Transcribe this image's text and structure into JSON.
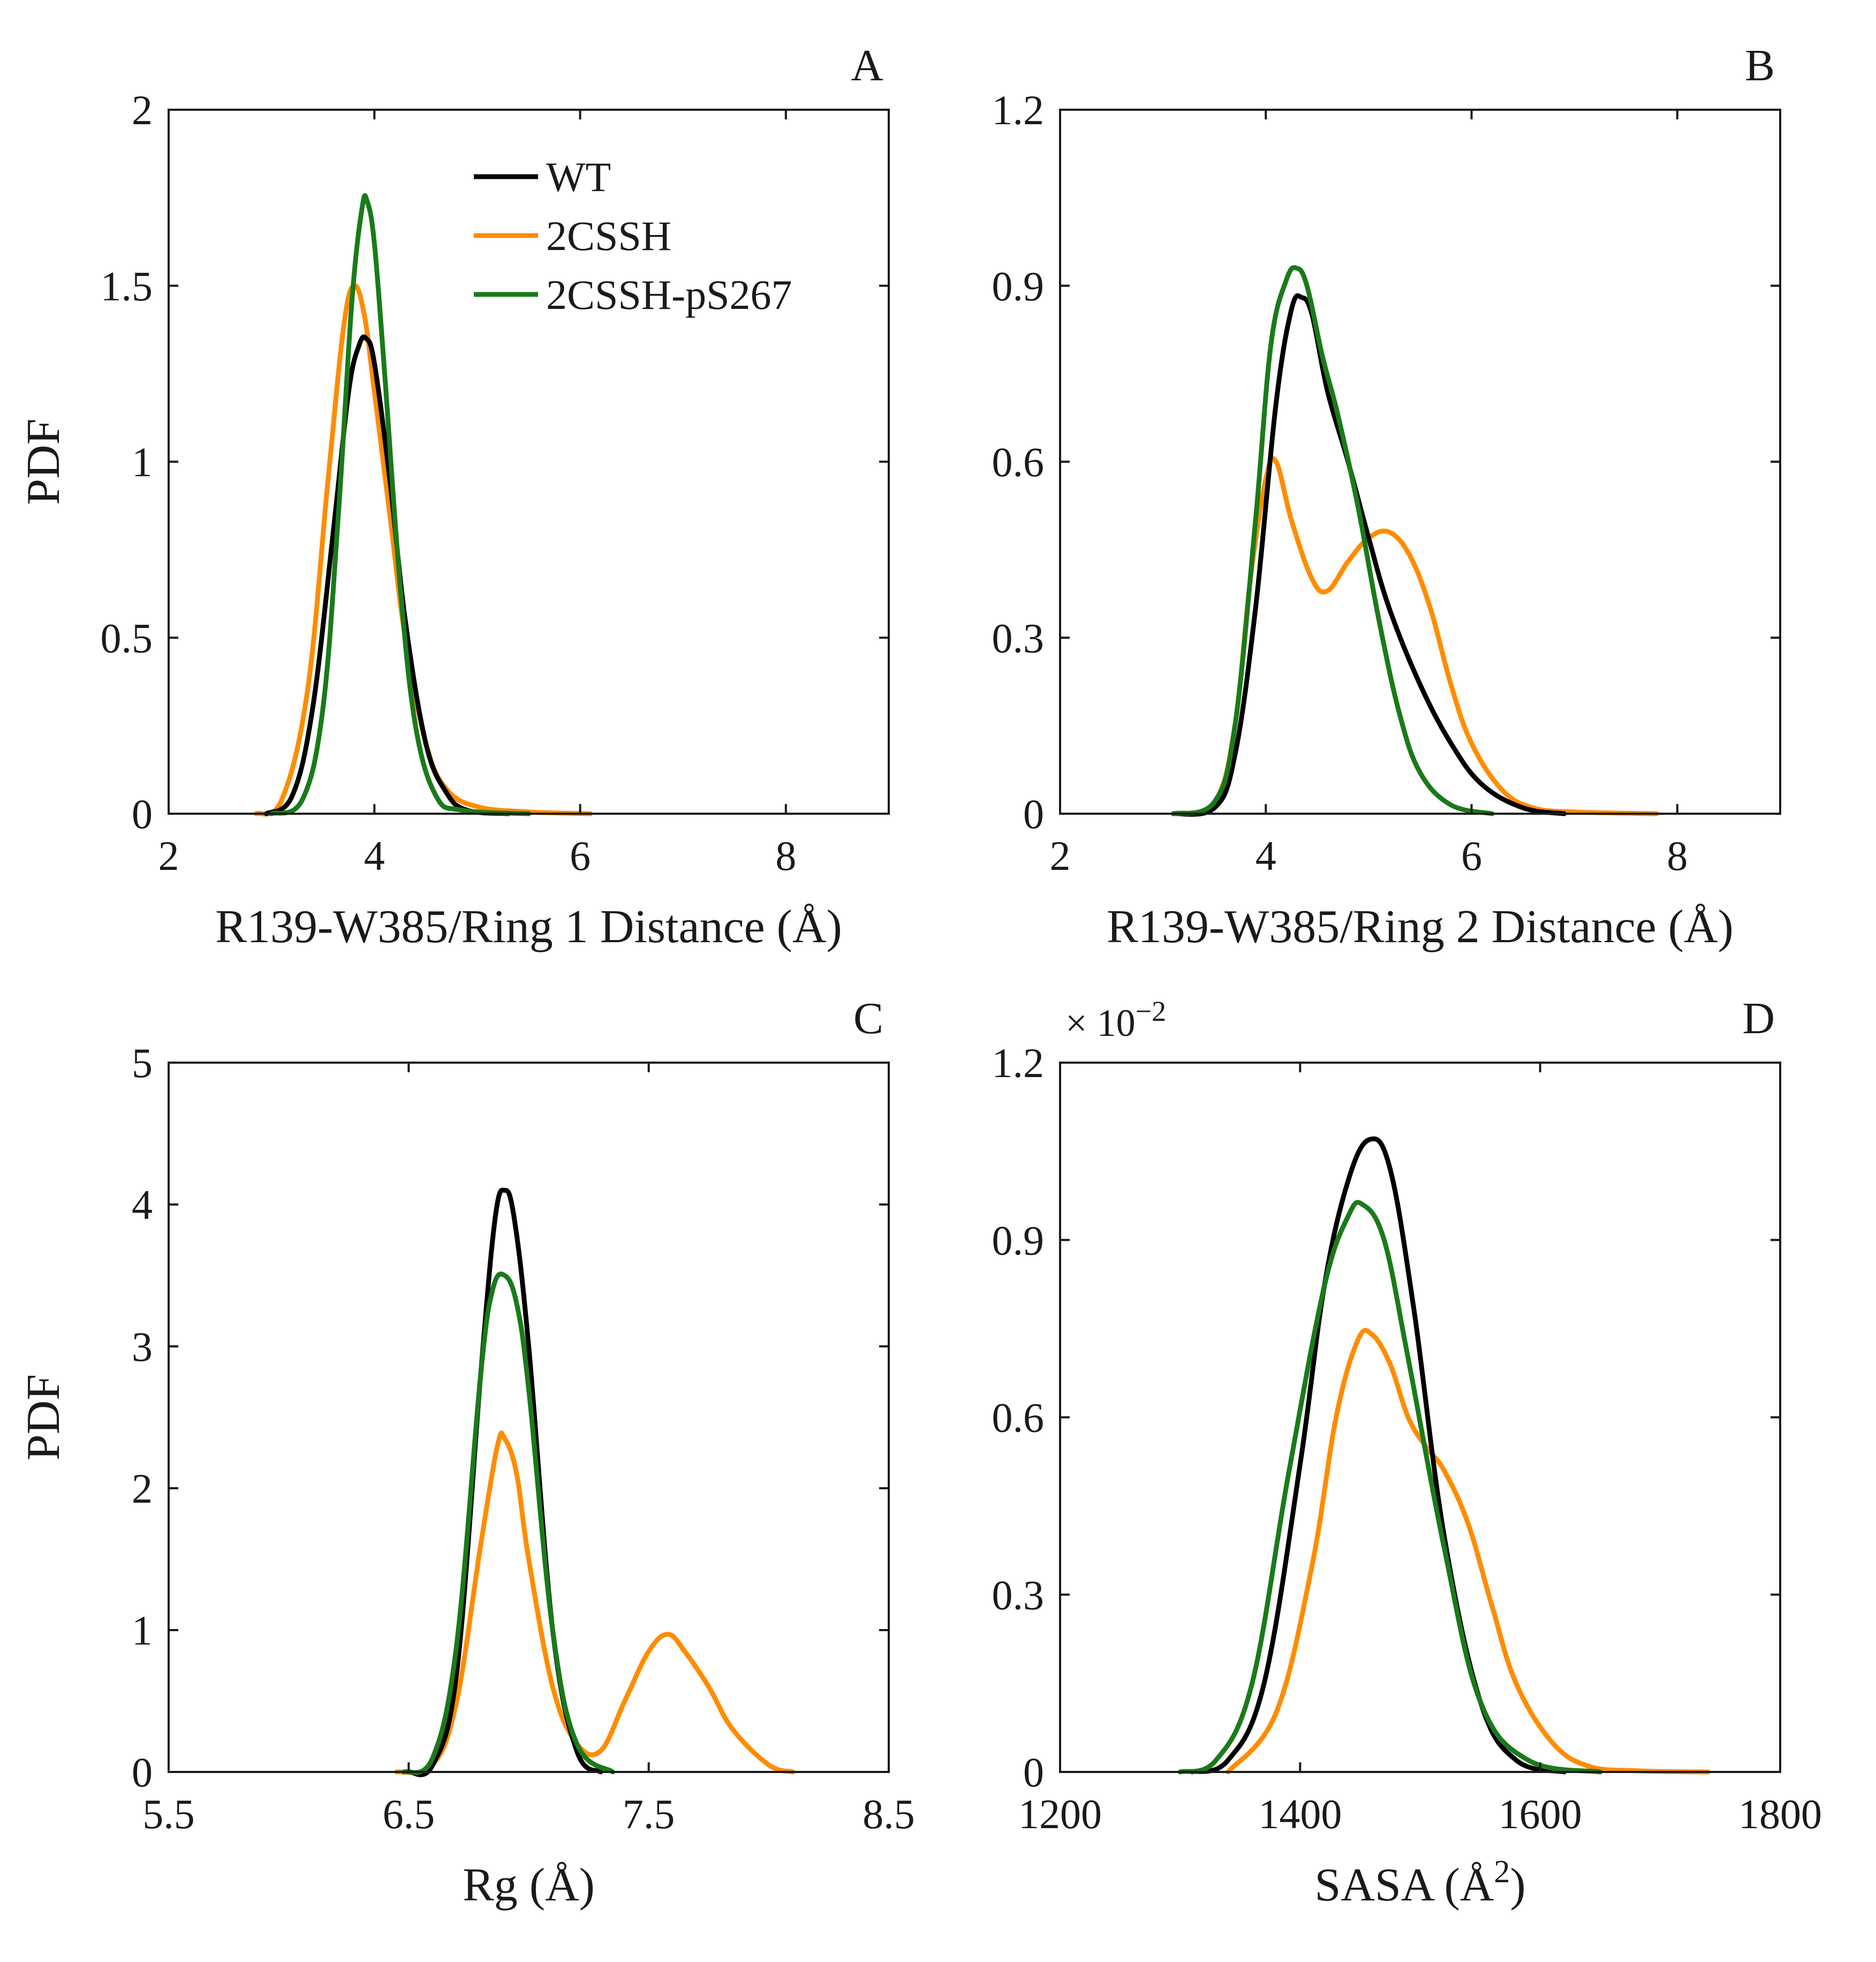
{
  "colors": {
    "WT": "#000000",
    "2CSSH": "#ff8c00",
    "2CSSH-pS267": "#1a7a1a"
  },
  "chart_data": [
    {
      "panel": "A",
      "type": "line",
      "ylabel": "PDF",
      "xlabel": "R139-W385/Ring 1 Distance (Å)",
      "xlim": [
        2,
        9
      ],
      "ylim": [
        0,
        2
      ],
      "xticks": [
        2,
        4,
        6,
        8
      ],
      "yticks": [
        0,
        0.5,
        1,
        1.5,
        2
      ],
      "ytick_labels": [
        "0",
        "0.5",
        "1",
        "1.5",
        "2"
      ],
      "legend": {
        "position": "top-center",
        "entries": [
          "WT",
          "2CSSH",
          "2CSSH-pS267"
        ]
      },
      "series": [
        {
          "name": "WT",
          "x": [
            2.95,
            3.2,
            3.4,
            3.6,
            3.75,
            3.85,
            3.92,
            4.0,
            4.15,
            4.3,
            4.5,
            4.7,
            4.9,
            5.3
          ],
          "y": [
            0,
            0.05,
            0.3,
            0.8,
            1.2,
            1.33,
            1.35,
            1.28,
            0.95,
            0.55,
            0.2,
            0.06,
            0.01,
            0
          ]
        },
        {
          "name": "2CSSH",
          "x": [
            2.85,
            3.1,
            3.35,
            3.55,
            3.7,
            3.8,
            3.9,
            4.0,
            4.15,
            4.3,
            4.5,
            4.7,
            5.0,
            5.5,
            6.1
          ],
          "y": [
            0,
            0.04,
            0.35,
            0.95,
            1.38,
            1.5,
            1.42,
            1.2,
            0.85,
            0.5,
            0.2,
            0.07,
            0.02,
            0.005,
            0
          ]
        },
        {
          "name": "2CSSH-pS267",
          "x": [
            3.0,
            3.3,
            3.5,
            3.65,
            3.78,
            3.88,
            3.93,
            4.0,
            4.1,
            4.25,
            4.4,
            4.6,
            4.85,
            5.5
          ],
          "y": [
            0,
            0.04,
            0.3,
            0.85,
            1.45,
            1.72,
            1.74,
            1.62,
            1.25,
            0.65,
            0.25,
            0.05,
            0.01,
            0
          ]
        }
      ]
    },
    {
      "panel": "B",
      "type": "line",
      "xlabel": "R139-W385/Ring 2 Distance (Å)",
      "xlim": [
        2,
        9
      ],
      "ylim": [
        0,
        1.2
      ],
      "xticks": [
        2,
        4,
        6,
        8
      ],
      "yticks": [
        0,
        0.3,
        0.6,
        0.9,
        1.2
      ],
      "ytick_labels": [
        "0",
        "0.3",
        "0.6",
        "0.9",
        "1.2"
      ],
      "series": [
        {
          "name": "WT",
          "x": [
            3.1,
            3.5,
            3.7,
            3.9,
            4.1,
            4.25,
            4.35,
            4.45,
            4.6,
            4.8,
            5.0,
            5.2,
            5.5,
            5.8,
            6.1,
            6.5,
            6.9
          ],
          "y": [
            0,
            0.01,
            0.1,
            0.35,
            0.7,
            0.86,
            0.88,
            0.85,
            0.72,
            0.6,
            0.47,
            0.35,
            0.22,
            0.12,
            0.05,
            0.01,
            0
          ]
        },
        {
          "name": "2CSSH",
          "x": [
            3.1,
            3.5,
            3.7,
            3.85,
            4.0,
            4.1,
            4.25,
            4.45,
            4.6,
            4.8,
            5.0,
            5.2,
            5.4,
            5.6,
            5.8,
            6.0,
            6.3,
            6.6,
            7.0,
            7.8
          ],
          "y": [
            0,
            0.02,
            0.15,
            0.4,
            0.57,
            0.6,
            0.5,
            0.4,
            0.38,
            0.43,
            0.47,
            0.48,
            0.44,
            0.35,
            0.22,
            0.12,
            0.04,
            0.01,
            0.003,
            0
          ]
        },
        {
          "name": "2CSSH-pS267",
          "x": [
            3.1,
            3.5,
            3.7,
            3.9,
            4.05,
            4.2,
            4.3,
            4.4,
            4.55,
            4.7,
            4.9,
            5.1,
            5.3,
            5.5,
            5.8,
            6.2
          ],
          "y": [
            0,
            0.02,
            0.15,
            0.5,
            0.8,
            0.91,
            0.93,
            0.9,
            0.78,
            0.68,
            0.52,
            0.33,
            0.17,
            0.07,
            0.015,
            0
          ]
        }
      ]
    },
    {
      "panel": "C",
      "type": "line",
      "ylabel": "PDF",
      "xlabel": "Rg (Å)",
      "xlim": [
        5.5,
        8.5
      ],
      "ylim": [
        0,
        5
      ],
      "xticks": [
        5.5,
        6.5,
        7.5,
        8.5
      ],
      "yticks": [
        0,
        1,
        2,
        3,
        4,
        5
      ],
      "ytick_labels": [
        "0",
        "1",
        "2",
        "3",
        "4",
        "5"
      ],
      "series": [
        {
          "name": "WT",
          "x": [
            6.5,
            6.6,
            6.7,
            6.8,
            6.86,
            6.9,
            6.94,
            7.0,
            7.1,
            7.2,
            7.3
          ],
          "y": [
            0,
            0.05,
            0.7,
            2.8,
            3.9,
            4.1,
            3.9,
            3.0,
            1.0,
            0.15,
            0
          ]
        },
        {
          "name": "2CSSH",
          "x": [
            6.45,
            6.6,
            6.7,
            6.8,
            6.87,
            6.9,
            6.95,
            7.0,
            7.1,
            7.2,
            7.3,
            7.4,
            7.5,
            7.58,
            7.65,
            7.75,
            7.85,
            8.0,
            8.1
          ],
          "y": [
            0,
            0.05,
            0.5,
            1.6,
            2.3,
            2.35,
            2.1,
            1.5,
            0.6,
            0.2,
            0.15,
            0.5,
            0.85,
            0.97,
            0.85,
            0.6,
            0.3,
            0.05,
            0
          ]
        },
        {
          "name": "2CSSH-pS267",
          "x": [
            6.48,
            6.6,
            6.7,
            6.8,
            6.85,
            6.9,
            6.95,
            7.0,
            7.1,
            7.2,
            7.35
          ],
          "y": [
            0,
            0.1,
            0.9,
            2.8,
            3.4,
            3.5,
            3.3,
            2.7,
            1.0,
            0.2,
            0
          ]
        }
      ]
    },
    {
      "panel": "D",
      "type": "line",
      "xlabel": "SASA (Å",
      "xlabel_sup": "2",
      "xlabel_end": ")",
      "xlim": [
        1200,
        1800
      ],
      "ylim": [
        0,
        1.2
      ],
      "xticks": [
        1200,
        1400,
        1600,
        1800
      ],
      "yticks": [
        0,
        0.3,
        0.6,
        0.9,
        1.2
      ],
      "ytick_labels": [
        "0",
        "0.3",
        "0.6",
        "0.9",
        "1.2"
      ],
      "y_multiplier": "× 10",
      "y_exponent": "−2",
      "series": [
        {
          "name": "WT",
          "x": [
            1310,
            1340,
            1370,
            1400,
            1420,
            1440,
            1458,
            1475,
            1495,
            1520,
            1550,
            1580,
            1620
          ],
          "y": [
            0,
            0.02,
            0.15,
            0.52,
            0.82,
            1.0,
            1.07,
            1.02,
            0.78,
            0.4,
            0.12,
            0.02,
            0
          ]
        },
        {
          "name": "2CSSH",
          "x": [
            1340,
            1380,
            1410,
            1430,
            1448,
            1460,
            1475,
            1490,
            1505,
            1520,
            1540,
            1560,
            1580,
            1610,
            1640,
            1680,
            1740
          ],
          "y": [
            0,
            0.1,
            0.35,
            0.6,
            0.73,
            0.74,
            0.69,
            0.6,
            0.55,
            0.51,
            0.42,
            0.28,
            0.15,
            0.05,
            0.01,
            0.002,
            0
          ]
        },
        {
          "name": "2CSSH-pS267",
          "x": [
            1300,
            1330,
            1360,
            1390,
            1420,
            1440,
            1452,
            1470,
            1490,
            1520,
            1550,
            1590,
            1650
          ],
          "y": [
            0,
            0.02,
            0.15,
            0.5,
            0.82,
            0.94,
            0.96,
            0.9,
            0.7,
            0.38,
            0.12,
            0.02,
            0
          ]
        }
      ]
    }
  ]
}
